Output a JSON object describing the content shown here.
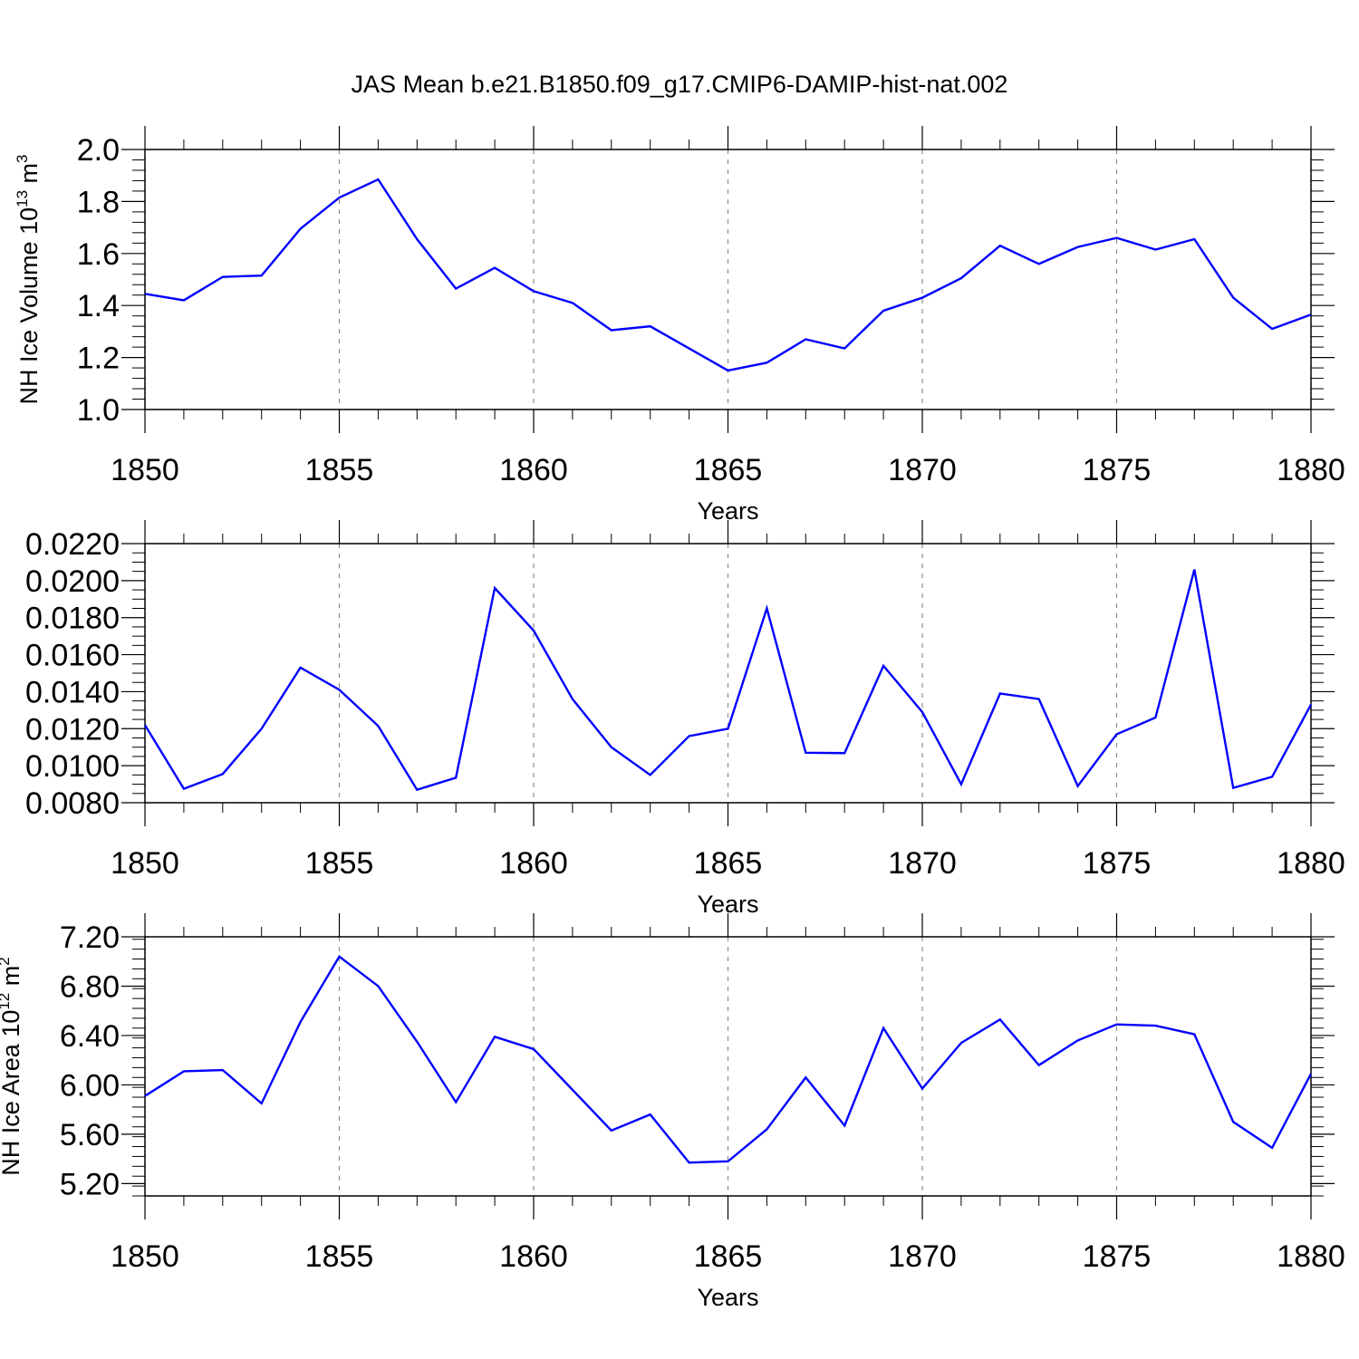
{
  "title": "JAS Mean b.e21.B1850.f09_g17.CMIP6-DAMIP-hist-nat.002",
  "colors": {
    "series": "#0000ff",
    "axes": "#000000",
    "grid": "#8c8c8c"
  },
  "chart_data": [
    {
      "type": "line",
      "id": "volume",
      "ylabel": "NH Ice Volume",
      "ylabel_unit_base": "10",
      "ylabel_unit_exp": "13",
      "ylabel_unit_suffix": "m",
      "ylabel_unit_suffix_exp": "3",
      "xlabel": "Years",
      "xlim": [
        1850,
        1880
      ],
      "ylim": [
        1.0,
        2.0
      ],
      "x_ticks": [
        1850,
        1855,
        1860,
        1865,
        1870,
        1875,
        1880
      ],
      "x_tick_labels": [
        "1850",
        "1855",
        "1860",
        "1865",
        "1870",
        "1875",
        "1880"
      ],
      "y_ticks": [
        1.0,
        1.2,
        1.4,
        1.6,
        1.8,
        2.0
      ],
      "y_tick_labels": [
        "1.0",
        "1.2",
        "1.4",
        "1.6",
        "1.8",
        "2.0"
      ],
      "y_minor_step": 0.04,
      "grid": "vertical-dashed",
      "x": [
        1850,
        1851,
        1852,
        1853,
        1854,
        1855,
        1856,
        1857,
        1858,
        1859,
        1860,
        1861,
        1862,
        1863,
        1864,
        1865,
        1866,
        1867,
        1868,
        1869,
        1870,
        1871,
        1872,
        1873,
        1874,
        1875,
        1876,
        1877,
        1878,
        1879,
        1880
      ],
      "values": [
        1.445,
        1.42,
        1.51,
        1.515,
        1.695,
        1.815,
        1.885,
        1.655,
        1.465,
        1.545,
        1.455,
        1.41,
        1.305,
        1.32,
        1.235,
        1.15,
        1.18,
        1.27,
        1.235,
        1.38,
        1.43,
        1.505,
        1.63,
        1.56,
        1.625,
        1.66,
        1.615,
        1.655,
        1.43,
        1.31,
        1.365
      ]
    },
    {
      "type": "line",
      "id": "thickness",
      "ylabel": "",
      "xlabel": "Years",
      "xlim": [
        1850,
        1880
      ],
      "ylim": [
        0.008,
        0.022
      ],
      "x_ticks": [
        1850,
        1855,
        1860,
        1865,
        1870,
        1875,
        1880
      ],
      "x_tick_labels": [
        "1850",
        "1855",
        "1860",
        "1865",
        "1870",
        "1875",
        "1880"
      ],
      "y_ticks": [
        0.008,
        0.01,
        0.012,
        0.014,
        0.016,
        0.018,
        0.02,
        0.022
      ],
      "y_tick_labels": [
        "0.0080",
        "0.0100",
        "0.0120",
        "0.0140",
        "0.0160",
        "0.0180",
        "0.0200",
        "0.0220"
      ],
      "y_minor_step": 0.0005,
      "grid": "vertical-dashed",
      "x": [
        1850,
        1851,
        1852,
        1853,
        1854,
        1855,
        1856,
        1857,
        1858,
        1859,
        1860,
        1861,
        1862,
        1863,
        1864,
        1865,
        1866,
        1867,
        1868,
        1869,
        1870,
        1871,
        1872,
        1873,
        1874,
        1875,
        1876,
        1877,
        1878,
        1879,
        1880
      ],
      "values": [
        0.0122,
        0.00875,
        0.00955,
        0.012,
        0.0153,
        0.0141,
        0.01215,
        0.0087,
        0.00935,
        0.0196,
        0.0173,
        0.0136,
        0.011,
        0.0095,
        0.0116,
        0.012,
        0.0185,
        0.0107,
        0.01068,
        0.0154,
        0.0129,
        0.009,
        0.0139,
        0.0136,
        0.0089,
        0.0117,
        0.0126,
        0.0206,
        0.0088,
        0.0094,
        0.0133
      ]
    },
    {
      "type": "line",
      "id": "area",
      "ylabel": "NH Ice Area",
      "ylabel_unit_base": "10",
      "ylabel_unit_exp": "12",
      "ylabel_unit_suffix": "m",
      "ylabel_unit_suffix_exp": "2",
      "xlabel": "Years",
      "xlim": [
        1850,
        1880
      ],
      "ylim": [
        5.1,
        7.2
      ],
      "x_ticks": [
        1850,
        1855,
        1860,
        1865,
        1870,
        1875,
        1880
      ],
      "x_tick_labels": [
        "1850",
        "1855",
        "1860",
        "1865",
        "1870",
        "1875",
        "1880"
      ],
      "y_ticks": [
        5.2,
        5.6,
        6.0,
        6.4,
        6.8,
        7.2
      ],
      "y_tick_labels": [
        "5.20",
        "5.60",
        "6.00",
        "6.40",
        "6.80",
        "7.20"
      ],
      "y_minor_step": 0.08,
      "grid": "vertical-dashed",
      "x": [
        1850,
        1851,
        1852,
        1853,
        1854,
        1855,
        1856,
        1857,
        1858,
        1859,
        1860,
        1861,
        1862,
        1863,
        1864,
        1865,
        1866,
        1867,
        1868,
        1869,
        1870,
        1871,
        1872,
        1873,
        1874,
        1875,
        1876,
        1877,
        1878,
        1879,
        1880
      ],
      "values": [
        5.91,
        6.11,
        6.12,
        5.85,
        6.51,
        7.04,
        6.8,
        6.35,
        5.86,
        6.39,
        6.29,
        5.96,
        5.63,
        5.76,
        5.37,
        5.38,
        5.64,
        6.06,
        5.67,
        6.46,
        5.97,
        6.34,
        6.53,
        6.16,
        6.36,
        6.49,
        6.48,
        6.41,
        5.7,
        5.49,
        6.09
      ]
    }
  ]
}
